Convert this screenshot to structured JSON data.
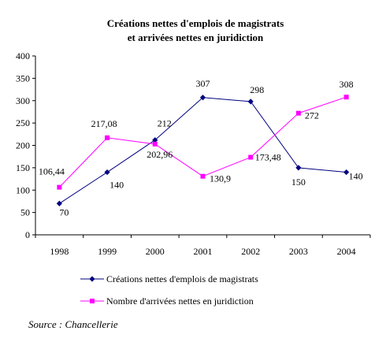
{
  "chart_data": {
    "type": "line",
    "title": [
      "Créations nettes d'emplois de magistrats",
      "et arrivées nettes en juridiction"
    ],
    "categories": [
      "1998",
      "1999",
      "2000",
      "2001",
      "2002",
      "2003",
      "2004"
    ],
    "ylim": [
      0,
      400
    ],
    "yticks": [
      0,
      50,
      100,
      150,
      200,
      250,
      300,
      350,
      400
    ],
    "grid": false,
    "legend_position": "bottom",
    "series": [
      {
        "name": "Créations nettes d'emplois de magistrats",
        "color": "#000080",
        "marker": "diamond",
        "values": [
          70,
          140,
          212,
          307,
          298,
          150,
          140
        ],
        "labels": [
          "70",
          "140",
          "212",
          "307",
          "298",
          "150",
          "140"
        ]
      },
      {
        "name": "Nombre d'arrivées nettes en juridiction",
        "color": "#ff00ff",
        "marker": "square",
        "values": [
          106.44,
          217.08,
          202.96,
          130.9,
          173.48,
          272,
          308
        ],
        "labels": [
          "106,44",
          "217,08",
          "202,96",
          "130,9",
          "173,48",
          "272",
          "308"
        ]
      }
    ]
  },
  "source": "Source : Chancellerie"
}
